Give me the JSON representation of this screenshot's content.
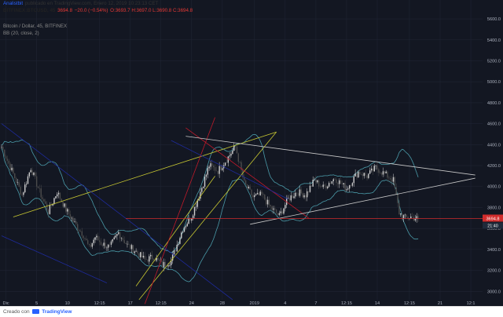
{
  "header": {
    "author": "Analistbit",
    "published": "publicado en TradingView.com, Enero 12, 2019 10:23:13 CET",
    "symbol": "BITFINEX:BTCUSD, 45",
    "close": "3694.8",
    "change": "−20.0 (−0.54%)",
    "ohlc": "O:3693.7 H:3697.0 L:3690.8 C:3694.8",
    "title": "Bitcoin / Dollar, 45, BITFINEX",
    "indicator": "BB (20, close, 2)"
  },
  "footer": {
    "created": "Creado con",
    "brand": "TradingView"
  },
  "colors": {
    "background": "#131722",
    "grid": "#1f2433",
    "axis_text": "#aab0bd",
    "bb_band": "#4a9aa8",
    "candle_up": "#cfcfcf",
    "candle_down": "#4c4c4c",
    "yellow_lines": "#c8c832",
    "red_lines": "#c01a2a",
    "white_lines": "#c9c9c9",
    "blue_lines": "#1e2a9a",
    "price_line": "#d12c2c",
    "price_badge": "#d12c2c"
  },
  "chart_data": {
    "type": "candlestick",
    "y_axis_side": "right",
    "ylim": [
      2860,
      5780
    ],
    "y_ticks": [
      "5600.0",
      "5400.0",
      "5200.0",
      "5000.0",
      "4800.0",
      "4600.0",
      "4400.0",
      "4200.0",
      "4000.0",
      "3800.0",
      "3600.0",
      "3400.0",
      "3200.0",
      "3000.0"
    ],
    "y_tick_values": [
      5600,
      5400,
      5200,
      5000,
      4800,
      4600,
      4400,
      4200,
      4000,
      3800,
      3600,
      3400,
      3200,
      3000
    ],
    "x_ticks": [
      "Dic",
      "5",
      "10",
      "12:15",
      "17",
      "12:15",
      "24",
      "28",
      "2019",
      "4",
      "7",
      "12:15",
      "14",
      "12:15",
      "21",
      "12:1"
    ],
    "last_price": 3694.8,
    "price_badge_text": "3694.8",
    "countdown_text": "21:40",
    "price_path": [
      [
        0,
        4380
      ],
      [
        8,
        4120
      ],
      [
        14,
        3920
      ],
      [
        20,
        4180
      ],
      [
        26,
        3950
      ],
      [
        32,
        3760
      ],
      [
        38,
        3950
      ],
      [
        44,
        3780
      ],
      [
        50,
        3650
      ],
      [
        56,
        3540
      ],
      [
        60,
        3410
      ],
      [
        64,
        3520
      ],
      [
        68,
        3460
      ],
      [
        74,
        3420
      ],
      [
        80,
        3560
      ],
      [
        86,
        3440
      ],
      [
        92,
        3380
      ],
      [
        98,
        3300
      ],
      [
        104,
        3330
      ],
      [
        110,
        3250
      ],
      [
        116,
        3290
      ],
      [
        124,
        3600
      ],
      [
        130,
        3720
      ],
      [
        136,
        3950
      ],
      [
        142,
        4200
      ],
      [
        148,
        4150
      ],
      [
        154,
        4260
      ],
      [
        160,
        4380
      ],
      [
        166,
        4030
      ],
      [
        172,
        3900
      ],
      [
        178,
        3920
      ],
      [
        184,
        3800
      ],
      [
        190,
        3720
      ],
      [
        196,
        3880
      ],
      [
        202,
        3950
      ],
      [
        208,
        3920
      ],
      [
        214,
        4060
      ],
      [
        220,
        3990
      ],
      [
        228,
        4080
      ],
      [
        236,
        3980
      ],
      [
        244,
        4140
      ],
      [
        250,
        4100
      ],
      [
        256,
        4180
      ],
      [
        262,
        4120
      ],
      [
        268,
        4060
      ],
      [
        272,
        3750
      ],
      [
        276,
        3700
      ],
      [
        280,
        3710
      ],
      [
        284,
        3694.8
      ]
    ],
    "overlays": [
      {
        "id": "yellow-line-1",
        "color": "yellow",
        "from": [
          8,
          3710
        ],
        "to": [
          188,
          4520
        ]
      },
      {
        "id": "yellow-line-2",
        "color": "yellow",
        "from": [
          94,
          2920
        ],
        "to": [
          188,
          4520
        ]
      },
      {
        "id": "yellow-line-3",
        "color": "yellow",
        "from": [
          92,
          3050
        ],
        "to": [
          146,
          4100
        ]
      },
      {
        "id": "red-line-1",
        "color": "red",
        "from": [
          126,
          4560
        ],
        "to": [
          210,
          3700
        ]
      },
      {
        "id": "red-line-2",
        "color": "red",
        "from": [
          146,
          4660
        ],
        "to": [
          98,
          2880
        ]
      },
      {
        "id": "white-line-upper",
        "color": "white",
        "from": [
          126,
          4480
        ],
        "to": [
          324,
          4110
        ]
      },
      {
        "id": "white-line-lower",
        "color": "white",
        "from": [
          170,
          3640
        ],
        "to": [
          324,
          4080
        ]
      },
      {
        "id": "blue-line-1",
        "color": "blue",
        "from": [
          0,
          4600
        ],
        "to": [
          158,
          2920
        ]
      },
      {
        "id": "blue-line-2",
        "color": "blue",
        "from": [
          0,
          3530
        ],
        "to": [
          72,
          3080
        ]
      },
      {
        "id": "blue-line-3",
        "color": "blue",
        "from": [
          116,
          4440
        ],
        "to": [
          196,
          3880
        ]
      }
    ]
  }
}
